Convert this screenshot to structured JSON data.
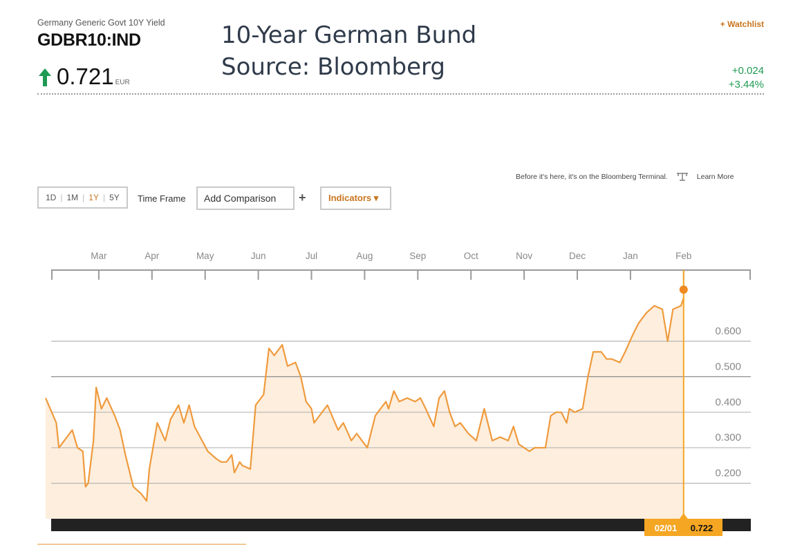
{
  "header": {
    "subtitle": "Germany Generic Govt 10Y Yield",
    "ticker": "GDBR10:IND",
    "price": "0.721",
    "currency": "EUR",
    "title_line1": "10-Year German Bund",
    "title_line2": "Source: Bloomberg",
    "watchlist": "+ Watchlist",
    "change_abs": "+0.024",
    "change_pct": "+3.44%",
    "up_color": "#1e9a52"
  },
  "toolbar": {
    "timeframes": [
      "1D",
      "1M",
      "1Y",
      "5Y"
    ],
    "active_timeframe": "1Y",
    "timeframe_label": "Time Frame",
    "comparison_label": "Add Comparison",
    "plus_label": "+",
    "indicators_label": "Indicators ▾"
  },
  "promo": {
    "text": "Before it's here, it's on the Bloomberg Terminal.",
    "learn_more": "Learn More"
  },
  "chart_data": {
    "type": "area",
    "months": [
      "Mar",
      "Apr",
      "May",
      "Jun",
      "Jul",
      "Aug",
      "Sep",
      "Oct",
      "Nov",
      "Dec",
      "Jan",
      "Feb"
    ],
    "y_ticks": [
      0.6,
      0.5,
      0.4,
      0.3,
      0.2
    ],
    "y_tick_labels": [
      "0.600",
      "0.500",
      "0.400",
      "0.300",
      "0.200"
    ],
    "ylim": [
      0.1,
      0.73
    ],
    "x_unit": "months since start of window (Mar = 1)",
    "series": [
      {
        "x": [
          0,
          0.2,
          0.25,
          0.4,
          0.5,
          0.6,
          0.7,
          0.75,
          0.8,
          0.9,
          0.95,
          1.05,
          1.15,
          1.3,
          1.4,
          1.5,
          1.6,
          1.65,
          1.8,
          1.9,
          1.95,
          2.1,
          2.25,
          2.35,
          2.5,
          2.6,
          2.7,
          2.8,
          3.05,
          3.2,
          3.3,
          3.4,
          3.5,
          3.55,
          3.65,
          3.7,
          3.85,
          3.95,
          4.1,
          4.2,
          4.3,
          4.45,
          4.55,
          4.7,
          4.8,
          4.9,
          5.0,
          5.05,
          5.15,
          5.3,
          5.5,
          5.6,
          5.75,
          5.85,
          6.05,
          6.2,
          6.4,
          6.45,
          6.55,
          6.65,
          6.8,
          6.95,
          7.05,
          7.15,
          7.3,
          7.4,
          7.5,
          7.6,
          7.7,
          7.8,
          7.95,
          8.1,
          8.25,
          8.3,
          8.4,
          8.55,
          8.7,
          8.8,
          8.9,
          9.0,
          9.1,
          9.2,
          9.4,
          9.5,
          9.6,
          9.7,
          9.8,
          9.85,
          9.95,
          10.1,
          10.2,
          10.3,
          10.45,
          10.55,
          10.65,
          10.8,
          10.9,
          11.05,
          11.15,
          11.25,
          11.3,
          11.45,
          11.6,
          11.7,
          11.8,
          11.95,
          12.0
        ],
        "values": [
          0.44,
          0.37,
          0.3,
          0.33,
          0.35,
          0.3,
          0.29,
          0.19,
          0.2,
          0.32,
          0.47,
          0.41,
          0.44,
          0.39,
          0.35,
          0.28,
          0.22,
          0.19,
          0.17,
          0.15,
          0.24,
          0.37,
          0.32,
          0.38,
          0.42,
          0.37,
          0.42,
          0.36,
          0.29,
          0.27,
          0.26,
          0.26,
          0.28,
          0.23,
          0.26,
          0.25,
          0.24,
          0.42,
          0.45,
          0.58,
          0.56,
          0.59,
          0.53,
          0.54,
          0.5,
          0.43,
          0.41,
          0.37,
          0.39,
          0.42,
          0.35,
          0.37,
          0.32,
          0.34,
          0.3,
          0.39,
          0.43,
          0.41,
          0.46,
          0.43,
          0.44,
          0.43,
          0.44,
          0.41,
          0.36,
          0.44,
          0.46,
          0.4,
          0.36,
          0.37,
          0.34,
          0.32,
          0.41,
          0.38,
          0.32,
          0.33,
          0.32,
          0.36,
          0.31,
          0.3,
          0.29,
          0.3,
          0.3,
          0.39,
          0.4,
          0.4,
          0.37,
          0.41,
          0.4,
          0.41,
          0.5,
          0.57,
          0.57,
          0.55,
          0.55,
          0.54,
          0.57,
          0.62,
          0.65,
          0.67,
          0.68,
          0.7,
          0.69,
          0.6,
          0.69,
          0.7,
          0.722
        ]
      }
    ],
    "marker": {
      "x": 12.0,
      "value": 0.722,
      "date_label": "02/01",
      "value_label": "0.722"
    },
    "colors": {
      "line": "#ef9a3c",
      "fill": "#fdeedd",
      "marker": "#ee8a22",
      "cursor": "#f5a623",
      "tag_bg": "#f5a623"
    },
    "grid": true
  }
}
